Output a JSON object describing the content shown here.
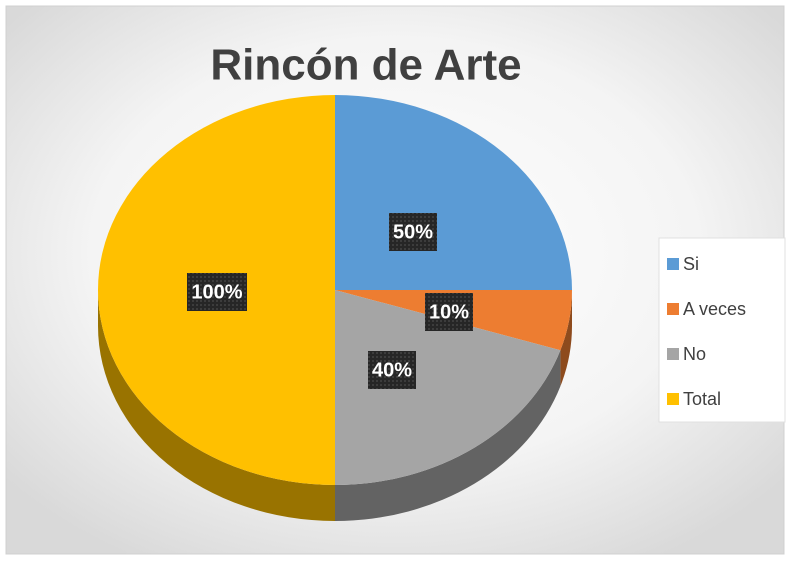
{
  "chart_data": {
    "type": "pie3d",
    "title": "Rincón de Arte",
    "categories": [
      "Si",
      "A veces",
      "No",
      "Total"
    ],
    "values": [
      50,
      10,
      40,
      100
    ],
    "value_labels": [
      "50%",
      "10%",
      "40%",
      "100%"
    ],
    "colors": [
      "#5b9bd5",
      "#ed7d31",
      "#a5a5a5",
      "#ffc000"
    ],
    "legend": "right"
  }
}
